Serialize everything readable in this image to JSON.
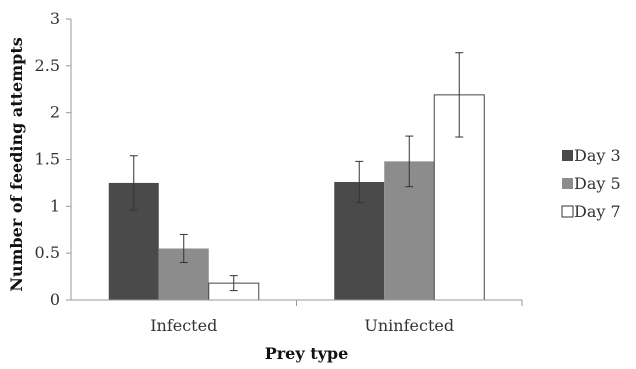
{
  "chart_data": {
    "type": "bar",
    "title": "",
    "xlabel": "Prey type",
    "ylabel": "Number of feeding attempts",
    "categories": [
      "Infected",
      "Uninfected"
    ],
    "ylim": [
      0,
      3
    ],
    "yticks": [
      "0",
      "0.5",
      "1",
      "1.5",
      "2",
      "2.5",
      "3"
    ],
    "grid": false,
    "legend_position": "right",
    "series": [
      {
        "name": "Day 3",
        "color": "#4a4a4a",
        "values": [
          1.25,
          1.26
        ],
        "errors": [
          0.29,
          0.22
        ]
      },
      {
        "name": "Day 5",
        "color": "#8c8c8c",
        "values": [
          0.55,
          1.48
        ],
        "errors": [
          0.15,
          0.27
        ]
      },
      {
        "name": "Day 7",
        "color": "#ffffff",
        "values": [
          0.18,
          2.19
        ],
        "errors": [
          0.08,
          0.45
        ]
      }
    ]
  }
}
